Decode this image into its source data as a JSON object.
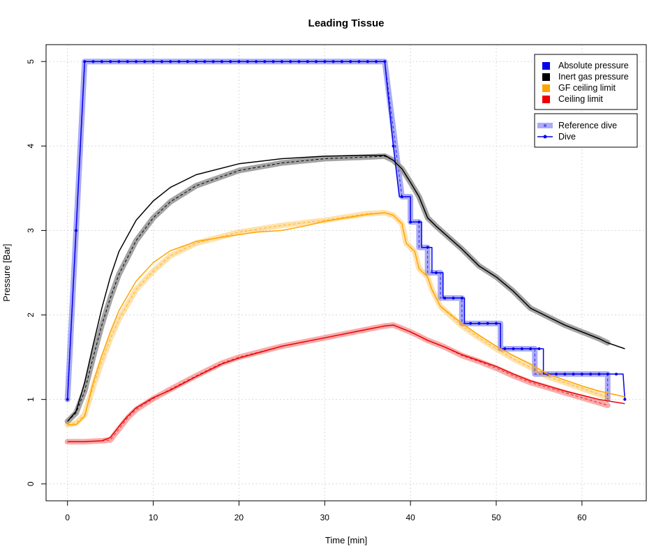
{
  "chart_data": {
    "type": "line",
    "title": "Leading Tissue",
    "xlabel": "Time [min]",
    "ylabel": "Pressure [Bar]",
    "xlim": [
      -2.5,
      67.5
    ],
    "ylim": [
      -0.2,
      5.2
    ],
    "xticks": [
      0,
      10,
      20,
      30,
      40,
      50,
      60
    ],
    "yticks": [
      0,
      1,
      2,
      3,
      4,
      5
    ],
    "grid": true,
    "legend_placement": "top-right",
    "legend_variables": [
      {
        "label": "Absolute pressure",
        "color": "#0000ee"
      },
      {
        "label": "Inert gas pressure",
        "color": "#000000"
      },
      {
        "label": "GF ceiling limit",
        "color": "#ffa500"
      },
      {
        "label": "Ceiling limit",
        "color": "#ee0000"
      }
    ],
    "legend_styles": [
      {
        "label": "Reference dive",
        "style": "reference"
      },
      {
        "label": "Dive",
        "style": "dive"
      }
    ],
    "series": [
      {
        "variable": "Absolute pressure",
        "style": "reference",
        "color": "#0000ee",
        "points": [
          [
            0,
            1.0
          ],
          [
            2,
            5.0
          ],
          [
            37,
            5.0
          ],
          [
            39,
            3.4
          ],
          [
            40,
            3.4
          ],
          [
            40,
            3.1
          ],
          [
            41,
            3.1
          ],
          [
            41,
            2.8
          ],
          [
            42,
            2.8
          ],
          [
            42,
            2.5
          ],
          [
            43.5,
            2.5
          ],
          [
            43.5,
            2.2
          ],
          [
            46,
            2.2
          ],
          [
            46,
            1.9
          ],
          [
            50.5,
            1.9
          ],
          [
            50.5,
            1.6
          ],
          [
            54.5,
            1.6
          ],
          [
            54.5,
            1.3
          ],
          [
            63,
            1.3
          ],
          [
            63,
            1.0
          ]
        ]
      },
      {
        "variable": "Absolute pressure",
        "style": "dive",
        "color": "#0000ee",
        "points": [
          [
            0,
            1.0
          ],
          [
            1,
            3.0
          ],
          [
            2,
            5.0
          ],
          [
            37,
            5.0
          ],
          [
            38,
            4.0
          ],
          [
            38.7,
            3.4
          ],
          [
            40,
            3.4
          ],
          [
            40,
            3.1
          ],
          [
            41.3,
            3.1
          ],
          [
            41.3,
            2.8
          ],
          [
            42.5,
            2.8
          ],
          [
            42.5,
            2.5
          ],
          [
            43.8,
            2.5
          ],
          [
            43.8,
            2.2
          ],
          [
            46.3,
            2.2
          ],
          [
            46.3,
            1.9
          ],
          [
            50.5,
            1.9
          ],
          [
            50.5,
            1.6
          ],
          [
            55.5,
            1.6
          ],
          [
            55.5,
            1.3
          ],
          [
            64.8,
            1.3
          ],
          [
            65,
            1.0
          ]
        ]
      },
      {
        "variable": "Inert gas pressure",
        "style": "reference",
        "color": "#000000",
        "points": [
          [
            0,
            0.74
          ],
          [
            1,
            0.84
          ],
          [
            2,
            1.1
          ],
          [
            3,
            1.5
          ],
          [
            4,
            1.88
          ],
          [
            5,
            2.2
          ],
          [
            6,
            2.48
          ],
          [
            8,
            2.88
          ],
          [
            10,
            3.15
          ],
          [
            12,
            3.34
          ],
          [
            15,
            3.53
          ],
          [
            20,
            3.71
          ],
          [
            25,
            3.8
          ],
          [
            30,
            3.85
          ],
          [
            35,
            3.87
          ],
          [
            37,
            3.88
          ],
          [
            38,
            3.83
          ],
          [
            39,
            3.73
          ],
          [
            40,
            3.57
          ],
          [
            41,
            3.4
          ],
          [
            42,
            3.15
          ],
          [
            43,
            3.05
          ],
          [
            46,
            2.78
          ],
          [
            48,
            2.58
          ],
          [
            50,
            2.45
          ],
          [
            52,
            2.28
          ],
          [
            54,
            2.08
          ],
          [
            56,
            1.98
          ],
          [
            58,
            1.88
          ],
          [
            60,
            1.8
          ],
          [
            62,
            1.72
          ],
          [
            63,
            1.67
          ]
        ]
      },
      {
        "variable": "Inert gas pressure",
        "style": "dive",
        "color": "#000000",
        "points": [
          [
            0,
            0.74
          ],
          [
            1,
            0.86
          ],
          [
            2,
            1.2
          ],
          [
            3,
            1.65
          ],
          [
            4,
            2.08
          ],
          [
            5,
            2.45
          ],
          [
            6,
            2.75
          ],
          [
            8,
            3.12
          ],
          [
            10,
            3.35
          ],
          [
            12,
            3.51
          ],
          [
            15,
            3.66
          ],
          [
            20,
            3.79
          ],
          [
            25,
            3.85
          ],
          [
            30,
            3.88
          ],
          [
            35,
            3.89
          ],
          [
            37,
            3.89
          ],
          [
            38,
            3.83
          ],
          [
            39,
            3.73
          ],
          [
            40,
            3.57
          ],
          [
            41,
            3.4
          ],
          [
            42,
            3.15
          ],
          [
            43,
            3.05
          ],
          [
            46,
            2.78
          ],
          [
            48,
            2.58
          ],
          [
            50,
            2.45
          ],
          [
            52,
            2.28
          ],
          [
            54,
            2.08
          ],
          [
            56,
            1.98
          ],
          [
            58,
            1.88
          ],
          [
            60,
            1.8
          ],
          [
            62,
            1.72
          ],
          [
            63,
            1.67
          ],
          [
            65,
            1.6
          ]
        ]
      },
      {
        "variable": "GF ceiling limit",
        "style": "reference",
        "color": "#ffa500",
        "points": [
          [
            0,
            0.7
          ],
          [
            1,
            0.72
          ],
          [
            2,
            0.82
          ],
          [
            3,
            1.15
          ],
          [
            4,
            1.45
          ],
          [
            5,
            1.72
          ],
          [
            6,
            1.95
          ],
          [
            8,
            2.3
          ],
          [
            10,
            2.52
          ],
          [
            12,
            2.7
          ],
          [
            15,
            2.85
          ],
          [
            20,
            2.98
          ],
          [
            25,
            3.06
          ],
          [
            30,
            3.12
          ],
          [
            35,
            3.2
          ],
          [
            37,
            3.21
          ],
          [
            38,
            3.18
          ],
          [
            39,
            3.08
          ],
          [
            39.5,
            2.85
          ],
          [
            40,
            2.8
          ],
          [
            40.5,
            2.75
          ],
          [
            41,
            2.55
          ],
          [
            42,
            2.45
          ],
          [
            42.5,
            2.3
          ],
          [
            43.5,
            2.1
          ],
          [
            46,
            1.87
          ],
          [
            48,
            1.73
          ],
          [
            50,
            1.6
          ],
          [
            52,
            1.48
          ],
          [
            54,
            1.38
          ],
          [
            56,
            1.27
          ],
          [
            58,
            1.2
          ],
          [
            60,
            1.13
          ],
          [
            62,
            1.06
          ],
          [
            63,
            1.02
          ]
        ]
      },
      {
        "variable": "GF ceiling limit",
        "style": "dive",
        "color": "#ffa500",
        "points": [
          [
            0,
            0.7
          ],
          [
            1,
            0.7
          ],
          [
            2,
            0.8
          ],
          [
            3,
            1.2
          ],
          [
            4,
            1.52
          ],
          [
            5,
            1.8
          ],
          [
            6,
            2.05
          ],
          [
            8,
            2.4
          ],
          [
            10,
            2.62
          ],
          [
            12,
            2.76
          ],
          [
            15,
            2.87
          ],
          [
            18,
            2.92
          ],
          [
            20,
            2.95
          ],
          [
            22,
            2.98
          ],
          [
            25,
            3.0
          ],
          [
            26,
            3.02
          ],
          [
            28,
            3.06
          ],
          [
            30,
            3.11
          ],
          [
            35,
            3.19
          ],
          [
            37,
            3.21
          ],
          [
            38,
            3.18
          ],
          [
            39,
            3.08
          ],
          [
            39.5,
            2.85
          ],
          [
            40,
            2.8
          ],
          [
            40.5,
            2.75
          ],
          [
            41,
            2.55
          ],
          [
            42,
            2.45
          ],
          [
            42.5,
            2.3
          ],
          [
            43.5,
            2.1
          ],
          [
            46,
            1.9
          ],
          [
            48,
            1.76
          ],
          [
            50,
            1.63
          ],
          [
            52,
            1.52
          ],
          [
            54,
            1.42
          ],
          [
            56,
            1.3
          ],
          [
            58,
            1.23
          ],
          [
            60,
            1.16
          ],
          [
            62,
            1.1
          ],
          [
            65,
            1.03
          ]
        ]
      },
      {
        "variable": "Ceiling limit",
        "style": "reference",
        "color": "#ee0000",
        "points": [
          [
            0,
            0.5
          ],
          [
            2,
            0.5
          ],
          [
            4,
            0.51
          ],
          [
            5,
            0.52
          ],
          [
            6,
            0.65
          ],
          [
            7,
            0.78
          ],
          [
            8,
            0.88
          ],
          [
            10,
            1.01
          ],
          [
            12,
            1.12
          ],
          [
            15,
            1.28
          ],
          [
            18,
            1.43
          ],
          [
            20,
            1.5
          ],
          [
            25,
            1.63
          ],
          [
            30,
            1.73
          ],
          [
            35,
            1.83
          ],
          [
            37,
            1.87
          ],
          [
            38,
            1.88
          ],
          [
            39,
            1.84
          ],
          [
            40,
            1.8
          ],
          [
            41,
            1.75
          ],
          [
            42,
            1.7
          ],
          [
            44,
            1.62
          ],
          [
            46,
            1.52
          ],
          [
            48,
            1.45
          ],
          [
            50,
            1.37
          ],
          [
            52,
            1.28
          ],
          [
            54,
            1.2
          ],
          [
            56,
            1.14
          ],
          [
            58,
            1.08
          ],
          [
            60,
            1.02
          ],
          [
            62,
            0.96
          ],
          [
            63,
            0.93
          ]
        ]
      },
      {
        "variable": "Ceiling limit",
        "style": "dive",
        "color": "#ee0000",
        "points": [
          [
            0,
            0.5
          ],
          [
            2,
            0.5
          ],
          [
            4,
            0.51
          ],
          [
            5,
            0.55
          ],
          [
            6,
            0.68
          ],
          [
            7,
            0.8
          ],
          [
            8,
            0.9
          ],
          [
            10,
            1.02
          ],
          [
            12,
            1.11
          ],
          [
            15,
            1.27
          ],
          [
            18,
            1.42
          ],
          [
            20,
            1.49
          ],
          [
            25,
            1.63
          ],
          [
            30,
            1.73
          ],
          [
            35,
            1.83
          ],
          [
            37,
            1.87
          ],
          [
            38,
            1.88
          ],
          [
            39,
            1.84
          ],
          [
            40,
            1.8
          ],
          [
            41,
            1.75
          ],
          [
            42,
            1.7
          ],
          [
            44,
            1.62
          ],
          [
            46,
            1.53
          ],
          [
            48,
            1.46
          ],
          [
            50,
            1.39
          ],
          [
            52,
            1.3
          ],
          [
            54,
            1.22
          ],
          [
            56,
            1.16
          ],
          [
            58,
            1.1
          ],
          [
            60,
            1.05
          ],
          [
            62,
            1.0
          ],
          [
            65,
            0.95
          ]
        ]
      }
    ]
  }
}
